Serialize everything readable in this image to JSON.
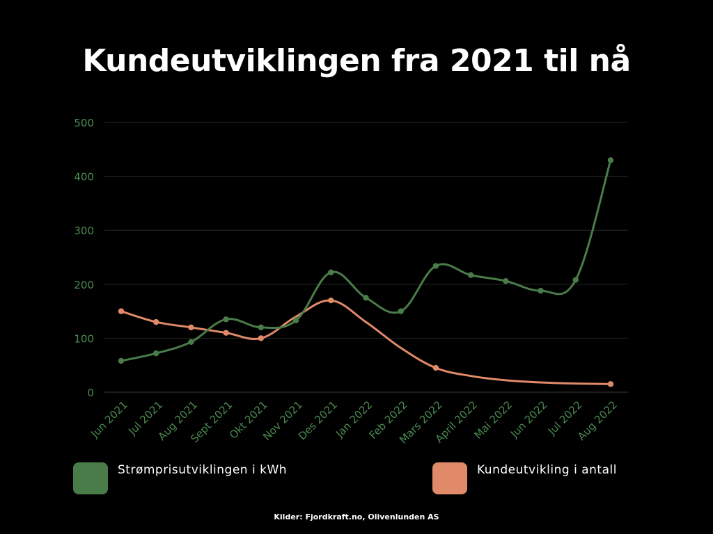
{
  "title": "Kundeutviklingen fra 2021 til nå",
  "source": "Kilder: Fjordkraft.no, Olivenlunden AS",
  "colors": {
    "background": "#000000",
    "tick_text": "#4a8a4f",
    "grid": "#262626",
    "series_green": "#4a7c4a",
    "series_salmon": "#e08a6a"
  },
  "chart_data": {
    "type": "line",
    "title": "Kundeutviklingen fra 2021 til nå",
    "categories": [
      "Jun 2021",
      "Jul 2021",
      "Aug 2021",
      "Sept 2021",
      "Okt 2021",
      "Nov 2021",
      "Des 2021",
      "Jan 2022",
      "Feb 2022",
      "Mars 2022",
      "April 2022",
      "Mai 2022",
      "Jun 2022",
      "Jul 2022",
      "Aug 2022"
    ],
    "ylim": [
      0,
      500
    ],
    "yticks": [
      0,
      100,
      200,
      300,
      400,
      500
    ],
    "grid": true,
    "legend_position": "bottom",
    "series": [
      {
        "name": "Strømprisutviklingen i kWh",
        "color": "#4a7c4a",
        "values": [
          58,
          72,
          93,
          135,
          120,
          133,
          222,
          175,
          150,
          234,
          217,
          206,
          188,
          208,
          430
        ],
        "markers": [
          true,
          true,
          true,
          true,
          true,
          true,
          true,
          true,
          true,
          true,
          true,
          true,
          true,
          true,
          true
        ]
      },
      {
        "name": "Kundeutvikling i antall",
        "color": "#e08a6a",
        "values": [
          150,
          130,
          120,
          110,
          100,
          140,
          170,
          130,
          82,
          45,
          30,
          22,
          18,
          16,
          15
        ],
        "markers": [
          true,
          true,
          true,
          true,
          true,
          false,
          true,
          false,
          false,
          true,
          false,
          false,
          false,
          false,
          true
        ]
      }
    ]
  }
}
